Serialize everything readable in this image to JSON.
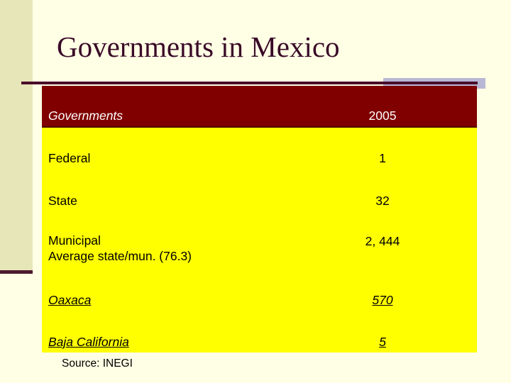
{
  "slide": {
    "title": "Governments in Mexico",
    "source": "Source: INEGI"
  },
  "table": {
    "header": {
      "label": "Governments",
      "value": "2005"
    },
    "rows": [
      {
        "label": "Federal",
        "value": "1"
      },
      {
        "label": "State",
        "value": "32"
      },
      {
        "label": "Municipal",
        "label2": "Average state/mun. (76.3)",
        "value": "2, 444"
      },
      {
        "label": "Oaxaca",
        "value": "570"
      },
      {
        "label": "Baja California",
        "value": "5"
      }
    ]
  },
  "colors": {
    "background": "#ffffe5",
    "table_fill": "#ffff00",
    "header_fill": "#800000",
    "title": "#3a0a28"
  }
}
